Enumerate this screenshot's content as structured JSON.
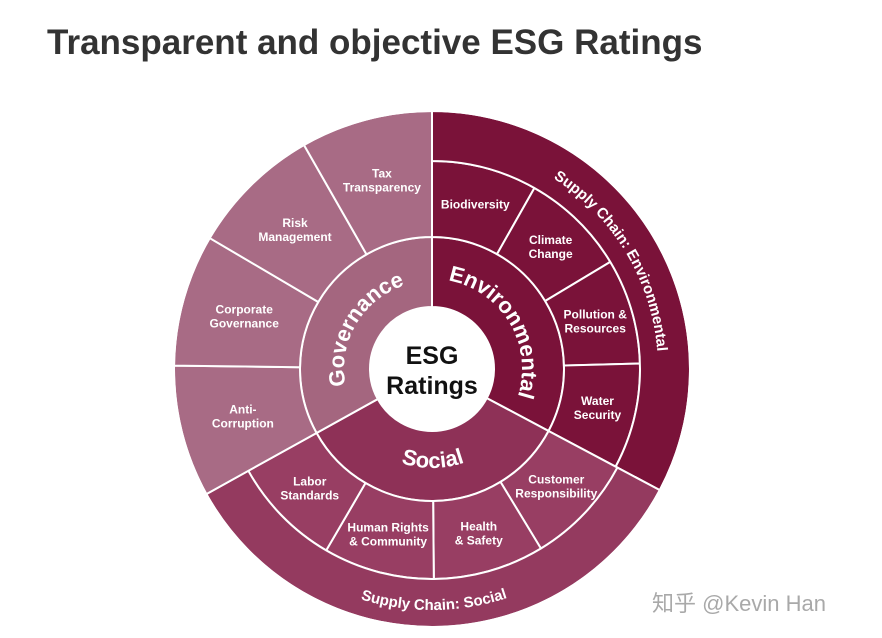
{
  "title": "Transparent and objective ESG Ratings",
  "center": [
    "ESG",
    "Ratings"
  ],
  "pillars": [
    {
      "name": "Environmental",
      "supply_chain": "Supply Chain: Environmental",
      "issues": [
        [
          "Biodiversity"
        ],
        [
          "Climate",
          "Change"
        ],
        [
          "Pollution &",
          "Resources"
        ],
        [
          "Water",
          "Security"
        ]
      ]
    },
    {
      "name": "Social",
      "supply_chain": "Supply Chain: Social",
      "issues": [
        [
          "Customer",
          "Responsibility"
        ],
        [
          "Health",
          "& Safety"
        ],
        [
          "Human Rights",
          "& Community"
        ],
        [
          "Labor",
          "Standards"
        ]
      ]
    },
    {
      "name": "Governance",
      "issues": [
        [
          "Anti-",
          "Corruption"
        ],
        [
          "Corporate",
          "Governance"
        ],
        [
          "Risk",
          "Management"
        ],
        [
          "Tax",
          "Transparency"
        ]
      ]
    }
  ],
  "watermark": "知乎 @Kevin Han"
}
